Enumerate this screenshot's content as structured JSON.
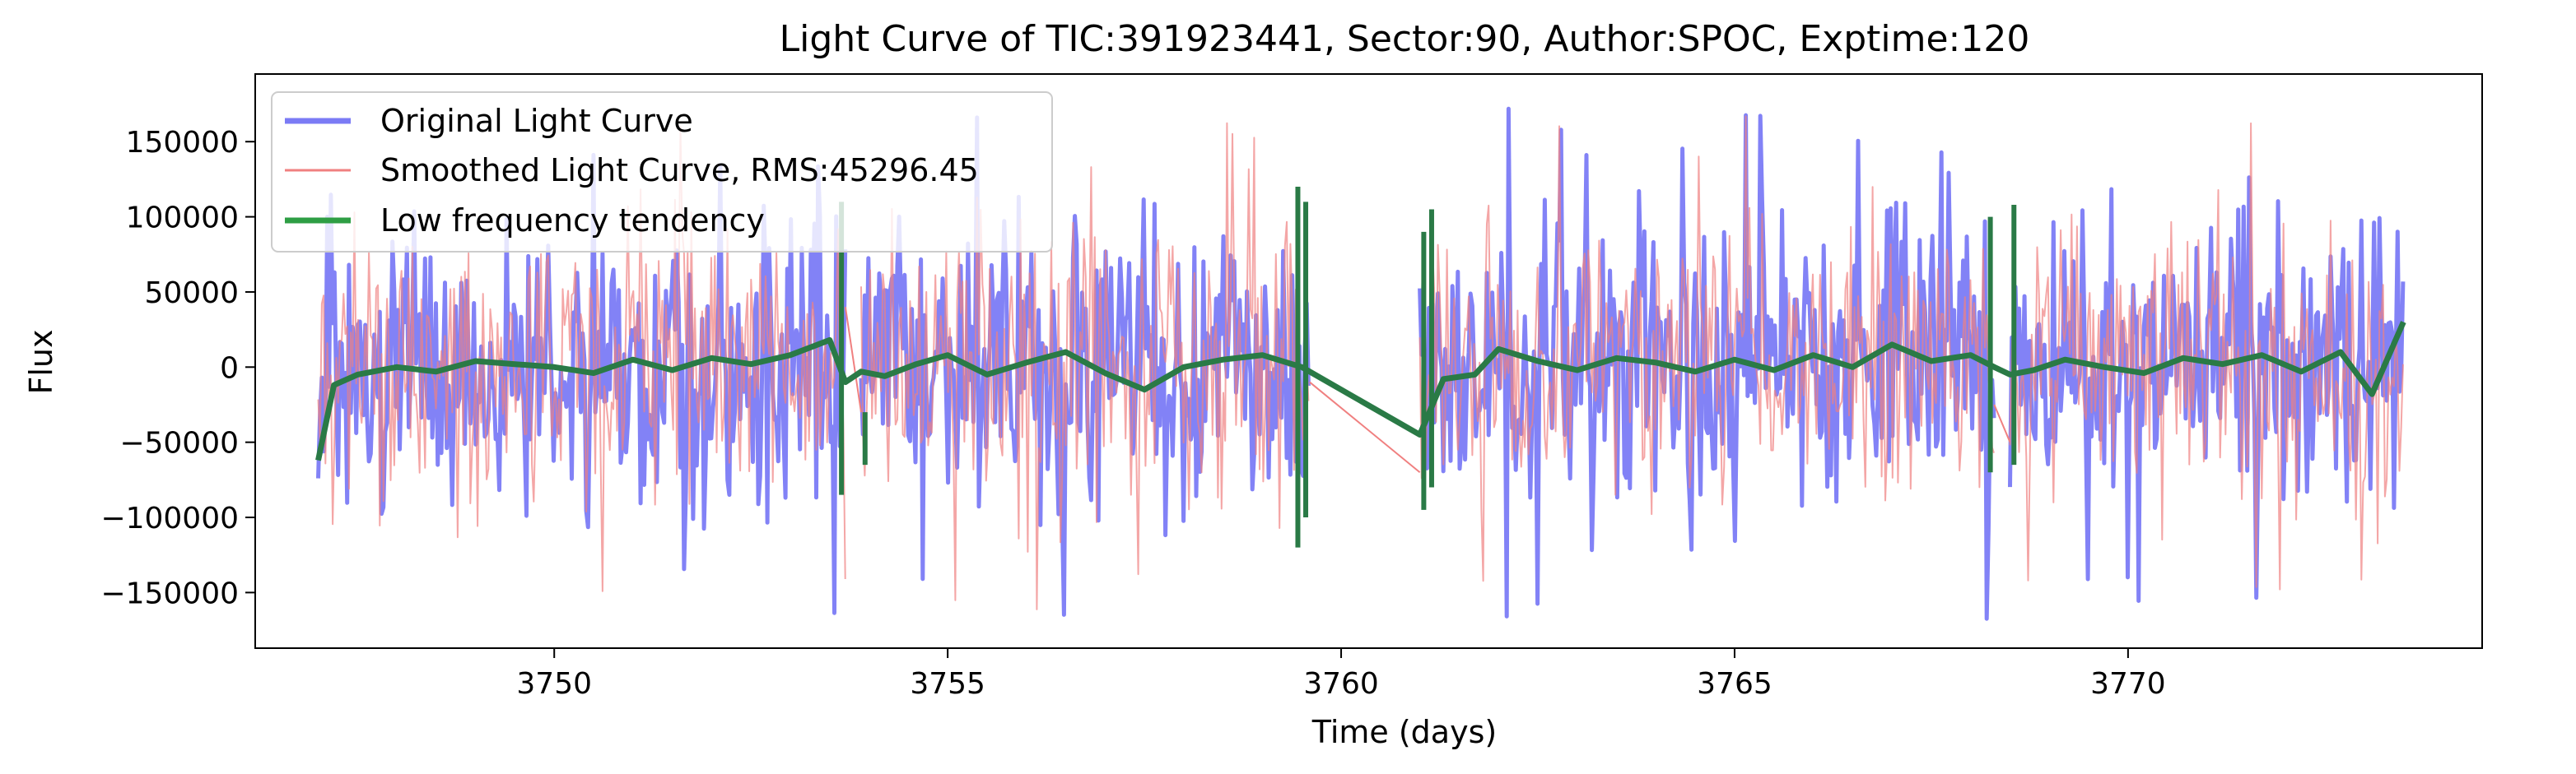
{
  "chart_data": {
    "type": "line",
    "title": "Light Curve of TIC:391923441, Sector:90, Author:SPOC, Exptime:120",
    "xlabel": "Time (days)",
    "ylabel": "Flux",
    "xlim": [
      3746.2,
      3774.5
    ],
    "ylim": [
      -187000,
      195000
    ],
    "xticks": [
      3750,
      3755,
      3760,
      3765,
      3770
    ],
    "xtick_labels": [
      "3750",
      "3755",
      "3760",
      "3765",
      "3770"
    ],
    "yticks": [
      -150000,
      -100000,
      -50000,
      0,
      50000,
      100000,
      150000
    ],
    "ytick_labels": [
      "−150000",
      "−100000",
      "−50000",
      "0",
      "50000",
      "100000",
      "150000"
    ],
    "grid": false,
    "legend_position": "top-left",
    "segments": [
      [
        3747.0,
        3753.7
      ],
      [
        3753.9,
        3759.6
      ],
      [
        3761.0,
        3768.3
      ],
      [
        3768.5,
        3773.5
      ]
    ],
    "series": [
      {
        "name": "Original Light Curve",
        "color": "#7b7bf5",
        "envelope_typical": [
          -85000,
          90000
        ],
        "extremes": [
          -168000,
          172000
        ]
      },
      {
        "name": "Smoothed Light Curve, RMS:45296.45",
        "color": "#f08080",
        "envelope_typical": [
          -80000,
          86000
        ],
        "extremes": [
          -165000,
          170000
        ]
      },
      {
        "name": "Low frequency tendency",
        "color": "#2e9e44",
        "x": [
          3747.0,
          3747.2,
          3747.5,
          3748.0,
          3748.5,
          3749.0,
          3749.5,
          3750.0,
          3750.5,
          3751.0,
          3751.5,
          3752.0,
          3752.5,
          3753.0,
          3753.5,
          3753.7,
          3753.9,
          3754.2,
          3754.6,
          3755.0,
          3755.5,
          3756.0,
          3756.5,
          3757.0,
          3757.5,
          3758.0,
          3758.5,
          3759.0,
          3759.5,
          3761.0,
          3761.3,
          3761.7,
          3762.0,
          3762.5,
          3763.0,
          3763.5,
          3764.0,
          3764.5,
          3765.0,
          3765.5,
          3766.0,
          3766.5,
          3767.0,
          3767.5,
          3768.0,
          3768.3,
          3768.5,
          3768.8,
          3769.2,
          3769.7,
          3770.2,
          3770.7,
          3771.2,
          3771.7,
          3772.2,
          3772.7,
          3773.1,
          3773.5
        ],
        "y": [
          -62000,
          -12000,
          -5000,
          0,
          -3000,
          4000,
          2000,
          0,
          -4000,
          5000,
          -2000,
          6000,
          2000,
          8000,
          18000,
          -10000,
          -3000,
          -6000,
          2000,
          8000,
          -5000,
          3000,
          10000,
          -4000,
          -15000,
          0,
          5000,
          8000,
          0,
          -45000,
          -8000,
          -5000,
          12000,
          4000,
          -2000,
          6000,
          3000,
          -3000,
          5000,
          -2000,
          8000,
          0,
          15000,
          4000,
          8000,
          0,
          -5000,
          -2000,
          5000,
          0,
          -4000,
          6000,
          2000,
          8000,
          -3000,
          10000,
          -18000,
          30000
        ]
      }
    ]
  }
}
